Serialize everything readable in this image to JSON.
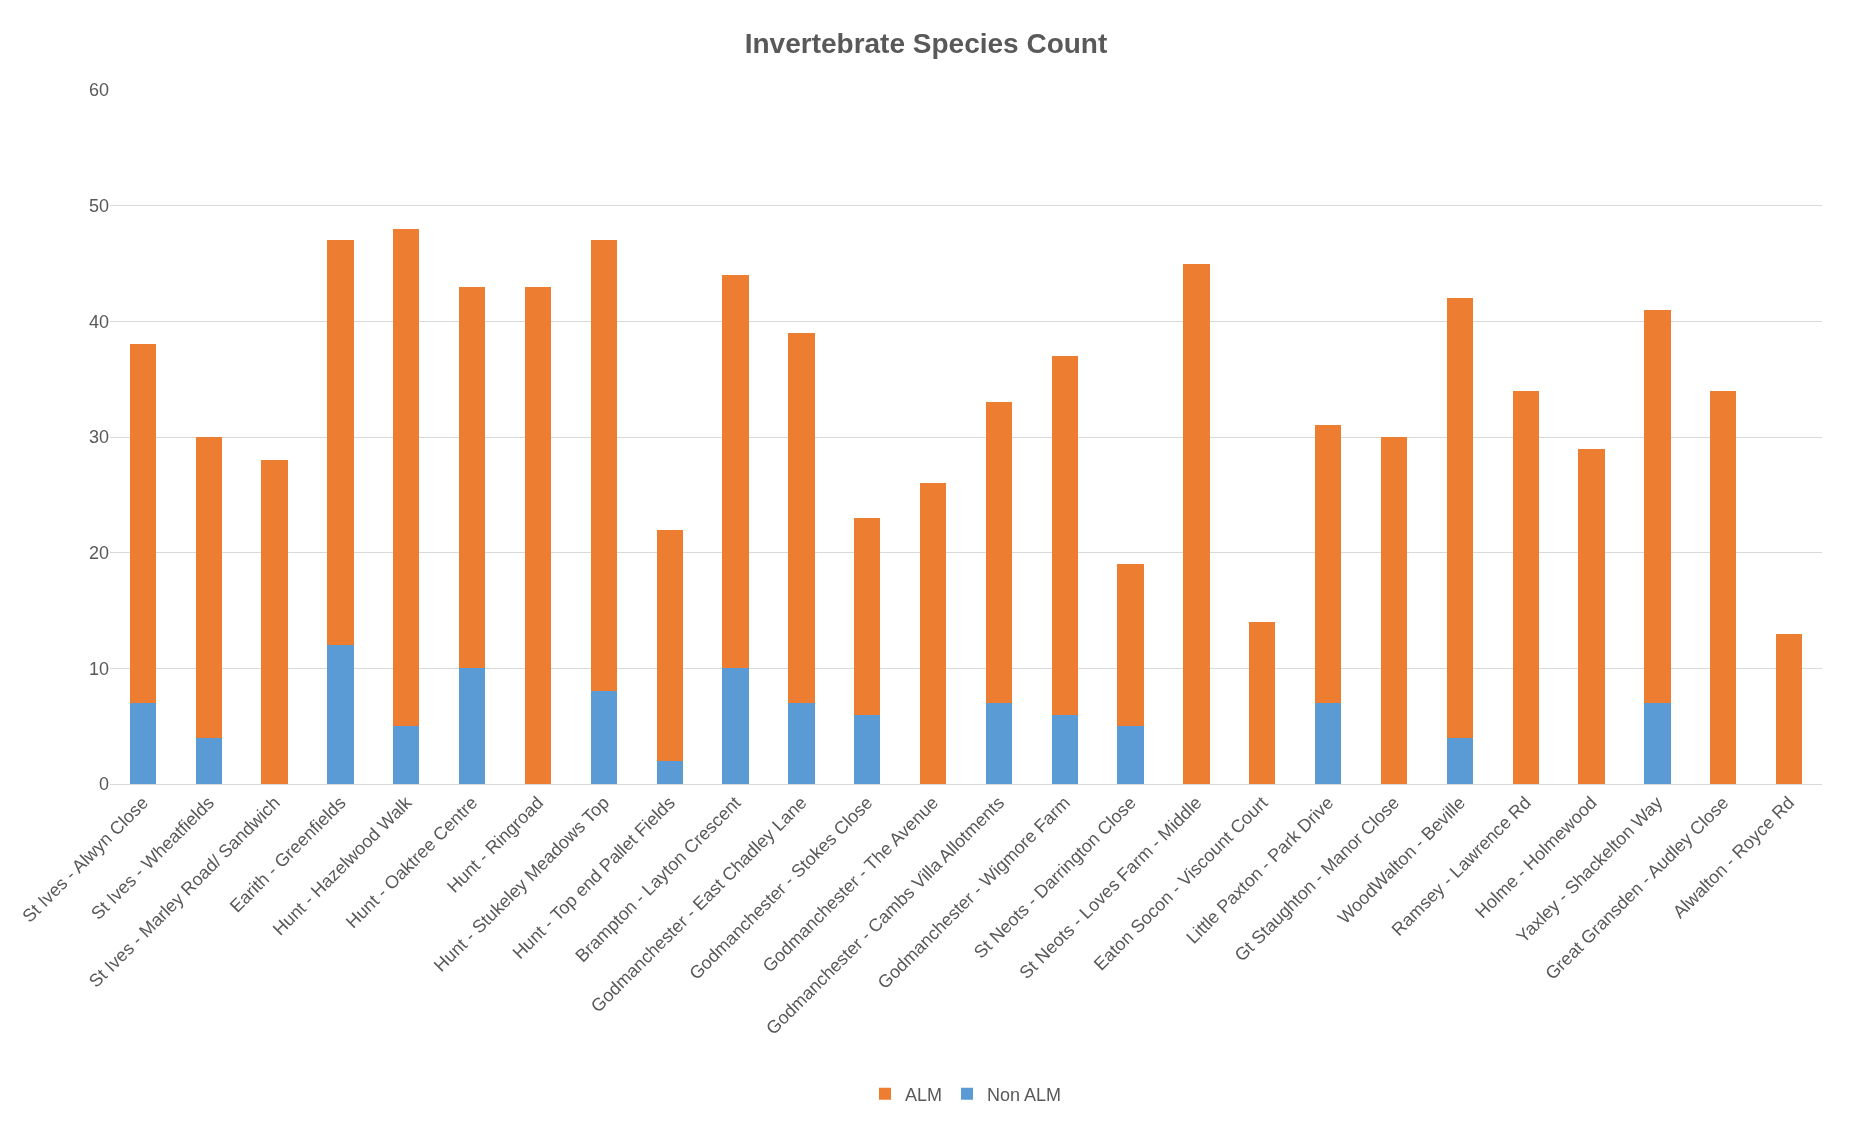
{
  "chart_data": {
    "type": "bar",
    "title": "Invertebrate Species Count",
    "stacked": true,
    "categories": [
      "St Ives - Alwyn Close",
      "St Ives - Wheatfields",
      "St Ives - Marley Road/ Sandwich",
      "Earith - Greenfields",
      "Hunt - Hazelwood Walk",
      "Hunt - Oaktree Centre",
      "Hunt - Ringroad",
      "Hunt - Stukeley Meadows Top",
      "Hunt - Top end Pallet Fields",
      "Brampton - Layton Crescent",
      "Godmanchester - East Chadley Lane",
      "Godmanchester - Stokes Close",
      "Godmanchester - The Avenue",
      "Godmanchester - Cambs Villa Allotments",
      "Godmanchester - Wigmore Farm",
      "St Neots - Darrington Close",
      "St Neots - Loves Farm - Middle",
      "Eaton Socon - Viscount Court",
      "Little Paxton - Park Drive",
      "Gt Staughton - Manor Close",
      "WoodWalton - Beville",
      "Ramsey - Lawrence Rd",
      "Holme - Holmewood",
      "Yaxley - Shackelton Way",
      "Great Gransden - Audley Close",
      "Alwalton - Royce Rd"
    ],
    "series": [
      {
        "name": "Non ALM",
        "color": "#5b9bd5",
        "values": [
          7,
          4,
          0,
          12,
          5,
          10,
          0,
          8,
          2,
          10,
          7,
          6,
          0,
          7,
          6,
          5,
          0,
          0,
          7,
          0,
          4,
          0,
          0,
          7,
          0,
          0
        ]
      },
      {
        "name": "ALM",
        "color": "#ed7d31",
        "values": [
          31,
          26,
          28,
          35,
          43,
          33,
          43,
          39,
          20,
          34,
          32,
          17,
          26,
          26,
          31,
          14,
          45,
          14,
          24,
          30,
          38,
          34,
          29,
          34,
          34,
          13
        ]
      }
    ],
    "ylim": [
      0,
      60
    ],
    "yticks": [
      0,
      10,
      20,
      30,
      40,
      50,
      60
    ],
    "grid": "y",
    "legend": "bottom"
  }
}
